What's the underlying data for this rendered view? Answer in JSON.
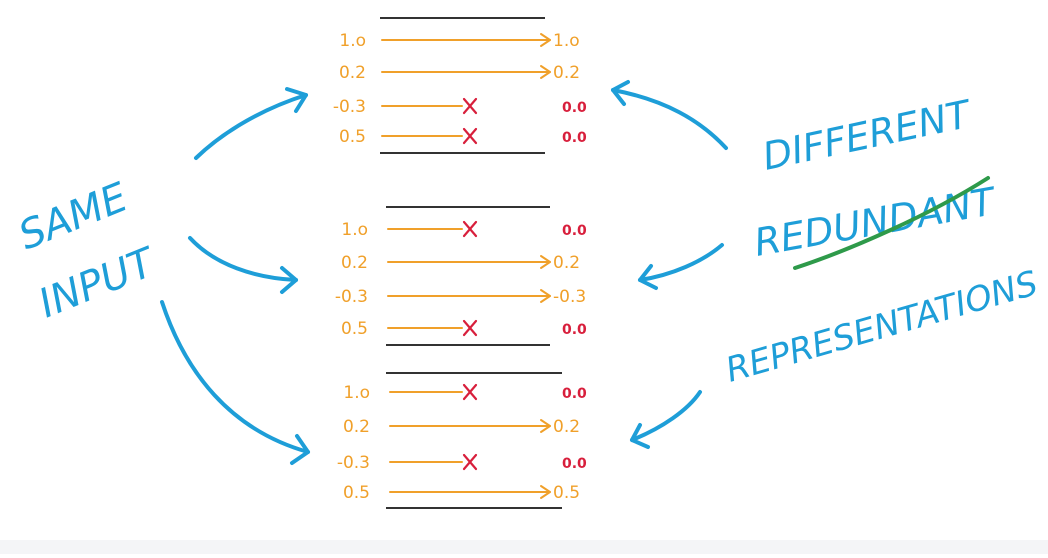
{
  "left_label": {
    "line1": "SAME",
    "line2": "INPUT"
  },
  "right_label": {
    "line1": "DIFFERENT",
    "line2": "REDUNDANT",
    "line3": "REPRESENTATIONS"
  },
  "colors": {
    "input": "#f0a02a",
    "connection": "#f0a02a",
    "dropped": "#d81f3c",
    "output_zero": "#d81f3c",
    "output_pass": "#f0a02a",
    "blue_ink": "#1e9ed8",
    "underline": "#2e9a4a",
    "separator": "#333333"
  },
  "blocks": [
    {
      "name": "block-1",
      "rows": [
        {
          "input": "1.o",
          "dropped": false,
          "output": "1.o"
        },
        {
          "input": "0.2",
          "dropped": false,
          "output": "0.2"
        },
        {
          "input": "-0.3",
          "dropped": true,
          "output": "0.0"
        },
        {
          "input": "0.5",
          "dropped": true,
          "output": "0.0"
        }
      ]
    },
    {
      "name": "block-2",
      "rows": [
        {
          "input": "1.o",
          "dropped": true,
          "output": "0.0"
        },
        {
          "input": "0.2",
          "dropped": false,
          "output": "0.2"
        },
        {
          "input": "-0.3",
          "dropped": false,
          "output": "-0.3"
        },
        {
          "input": "0.5",
          "dropped": true,
          "output": "0.0"
        }
      ]
    },
    {
      "name": "block-3",
      "rows": [
        {
          "input": "1.o",
          "dropped": true,
          "output": "0.0"
        },
        {
          "input": "0.2",
          "dropped": false,
          "output": "0.2"
        },
        {
          "input": "-0.3",
          "dropped": true,
          "output": "0.0"
        },
        {
          "input": "0.5",
          "dropped": false,
          "output": "0.5"
        }
      ]
    }
  ]
}
